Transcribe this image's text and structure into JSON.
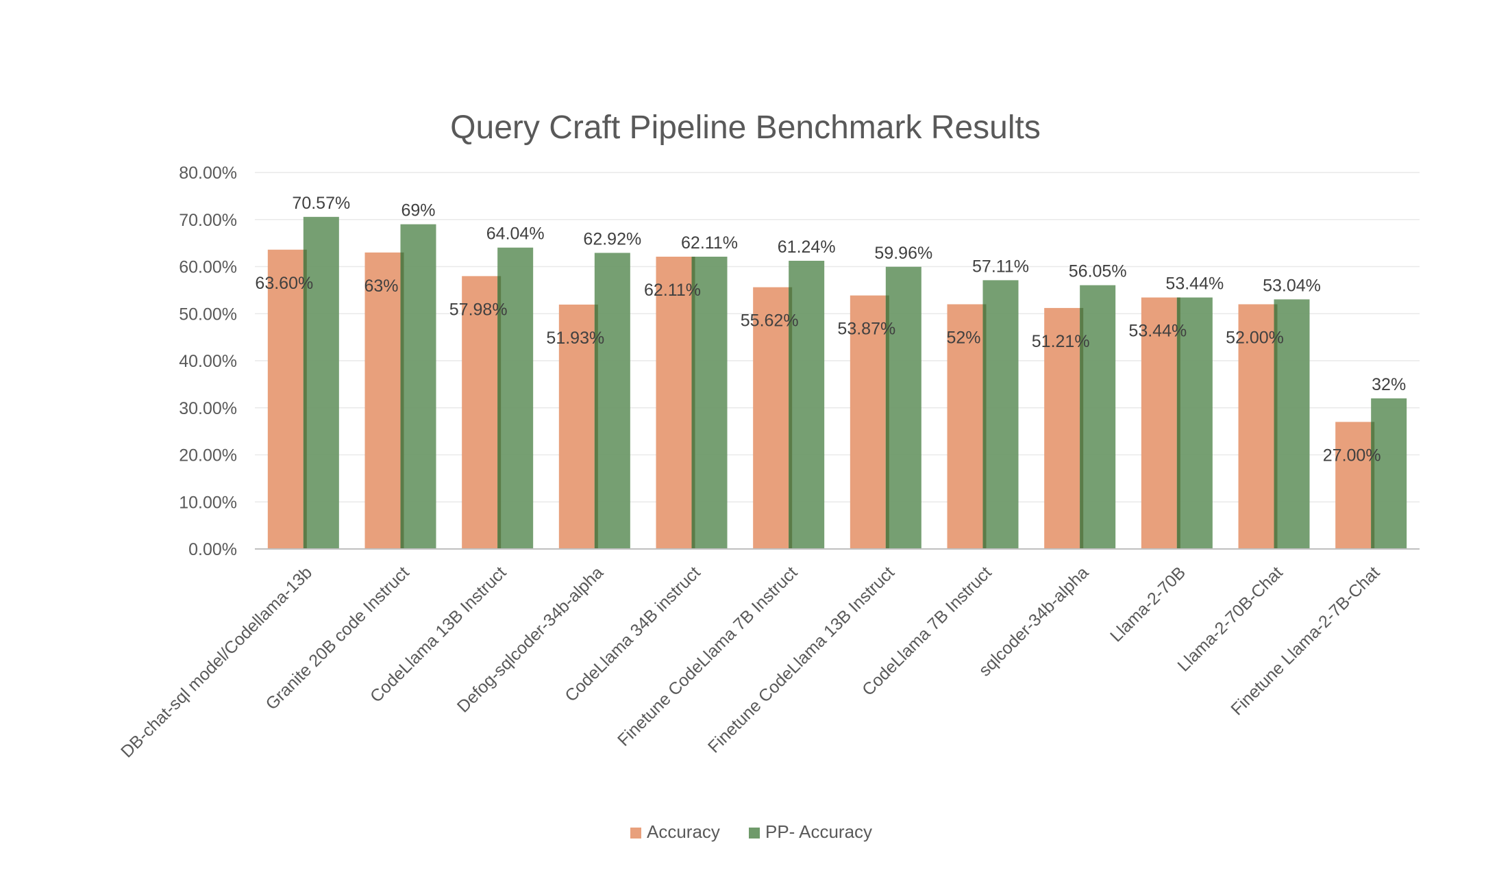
{
  "chart_data": {
    "type": "bar",
    "title": "Query Craft Pipeline Benchmark Results",
    "xlabel": "",
    "ylabel": "",
    "ylim": [
      0,
      80
    ],
    "y_ticks": [
      "0.00%",
      "10.00%",
      "20.00%",
      "30.00%",
      "40.00%",
      "50.00%",
      "60.00%",
      "70.00%",
      "80.00%"
    ],
    "grid": true,
    "legend_position": "bottom",
    "categories": [
      "DB-chat-sql model/Codellama-13b",
      "Granite 20B code Instruct",
      "CodeLlama 13B Instruct",
      "Defog-sqlcoder-34b-alpha",
      "CodeLlama  34B instruct",
      "Finetune CodeLlama 7B Instruct",
      "Finetune CodeLlama 13B Instruct",
      "CodeLlama 7B Instruct",
      "sqlcoder-34b-alpha",
      "Llama-2-70B",
      "Llama-2-70B-Chat",
      "Finetune Llama-2-7B-Chat"
    ],
    "series": [
      {
        "name": "Accuracy",
        "color": "#e8a07c",
        "values": [
          63.6,
          63,
          57.98,
          51.93,
          62.11,
          55.62,
          53.87,
          52,
          51.21,
          53.44,
          52.0,
          27.0
        ],
        "labels": [
          "63.60%",
          "63%",
          "57.98%",
          "51.93%",
          "62.11%",
          "55.62%",
          "53.87%",
          "52%",
          "51.21%",
          "53.44%",
          "52.00%",
          "27.00%"
        ]
      },
      {
        "name": "PP- Accuracy",
        "color": "#6f9a6a",
        "values": [
          70.57,
          69,
          64.04,
          62.92,
          62.11,
          61.24,
          59.96,
          57.11,
          56.05,
          53.44,
          53.04,
          32
        ],
        "labels": [
          "70.57%",
          "69%",
          "64.04%",
          "62.92%",
          "62.11%",
          "61.24%",
          "59.96%",
          "57.11%",
          "56.05%",
          "53.44%",
          "53.04%",
          "32%"
        ]
      }
    ]
  }
}
